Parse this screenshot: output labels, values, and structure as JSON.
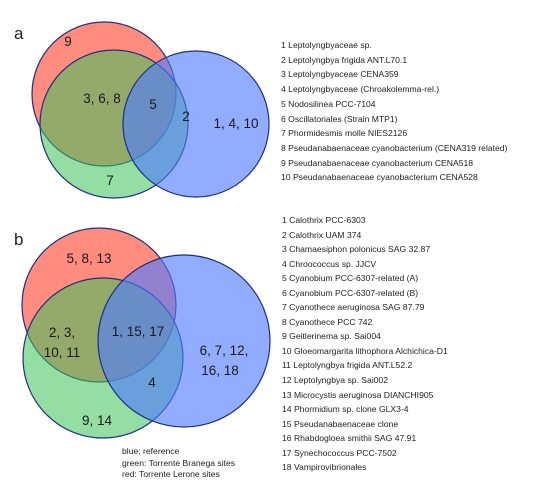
{
  "panel_a": {
    "label": "a",
    "regions": {
      "red_only": "9",
      "red_green": "3, 6, 8",
      "all_three": "5",
      "blue_only_near": "2",
      "blue_only": "1, 4, 10",
      "green_only": "7"
    },
    "legend": [
      "1 Leptolyngbyaceae sp.",
      "2 Leptolyngbya frigida ANT.L70.1",
      "3 Leptolyngbyaceae CENA359",
      "4 Leptolyngbyaceae (Chroakolemma-rel.)",
      "5 Nodosilinea PCC-7104",
      "6 Oscillatoriales (Strain MTP1)",
      "7 Phormidesmis molle  NIES2126",
      "8 Pseudanabaenaceae cyanobacterium (CENA319 related)",
      "9 Pseudanabaenaceae cyanobacterium CENA518",
      "10 Pseudanabaenaceae cyanobacterium CENA528"
    ]
  },
  "panel_b": {
    "label": "b",
    "regions": {
      "red_only": "5, 8, 13",
      "red_green_line1": "2, 3,",
      "red_green_line2": "10, 11",
      "all_three": "1, 15, 17",
      "green_blue": "4",
      "blue_only_line1": "6, 7, 12,",
      "blue_only_line2": "16, 18",
      "green_only": "9, 14"
    },
    "legend": [
      "1 Calothrix PCC-6303",
      "2 Calothrix UAM 374",
      "3 Chamaesiphon polonicus SAG 32.87",
      "4 Chroococcus sp. JJCV",
      "5 Cyanobium PCC-6307-related (A)",
      "6 Cyanobium PCC-6307-related (B)",
      "7 Cyanothece aeruginosa SAG 87.79",
      "8 Cyanothece PCC 742",
      "9 Geitlerinema sp. Sai004",
      "10 Gloeomargarita lithophora Alchichica-D1",
      "11 Leptolyngbya frigida ANT.L52.2",
      "12 Leptolyngbya sp. Sai002",
      "13 Microcystis aeruginosa DIANCHI905",
      "14 Phormidium sp. clone GLX3-4",
      "15 Pseudanabaenaceae clone",
      "16 Rhabdogloea smithii SAG 47.91",
      "17 Synechococcus PCC-7502",
      "18 Vampirovibrionales"
    ]
  },
  "key": {
    "blue": "blue: reference",
    "green": "green: Torrente  Branega sites",
    "red": "red: Torrente Lerone sites"
  },
  "colors": {
    "red": "#ff6b5a",
    "green": "#3cc25a",
    "blue": "#4f7bff",
    "outline": "#1f2f80"
  }
}
